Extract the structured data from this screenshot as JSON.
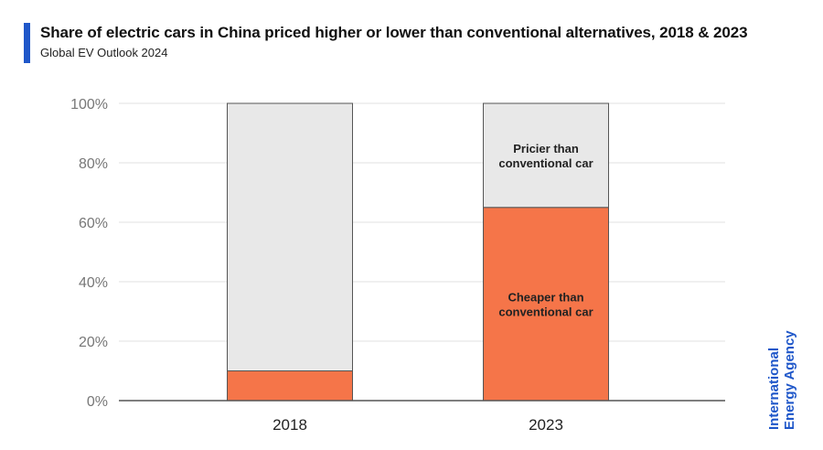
{
  "header": {
    "title": "Share of electric cars in China priced higher or lower than conventional alternatives, 2018 & 2023",
    "subtitle": "Global EV Outlook 2024"
  },
  "brand": {
    "line1": "International",
    "line2": "Energy Agency",
    "color": "#1f57c9"
  },
  "colors": {
    "accent": "#1f57c9",
    "cheaper": "#f57549",
    "pricier": "#e8e8e8",
    "grid": "#e0e0e0",
    "axis": "#555555",
    "tick_text": "#777777",
    "category_text": "#222222",
    "bar_outline": "#555555"
  },
  "chart_data": {
    "type": "bar",
    "stacked": true,
    "categories": [
      "2018",
      "2023"
    ],
    "series": [
      {
        "name": "Cheaper than conventional car",
        "values": [
          10,
          65
        ],
        "color": "#f57549"
      },
      {
        "name": "Pricier than conventional car",
        "values": [
          90,
          35
        ],
        "color": "#e8e8e8"
      }
    ],
    "series_labels": [
      {
        "series": 0,
        "category": 1,
        "lines": [
          "Cheaper than",
          "conventional car"
        ]
      },
      {
        "series": 1,
        "category": 1,
        "lines": [
          "Pricier than",
          "conventional car"
        ]
      }
    ],
    "yticks": [
      "0%",
      "20%",
      "40%",
      "60%",
      "80%",
      "100%"
    ],
    "ylim": [
      0,
      100
    ],
    "grid": true,
    "legend": "none",
    "xlabel": "",
    "ylabel": ""
  }
}
